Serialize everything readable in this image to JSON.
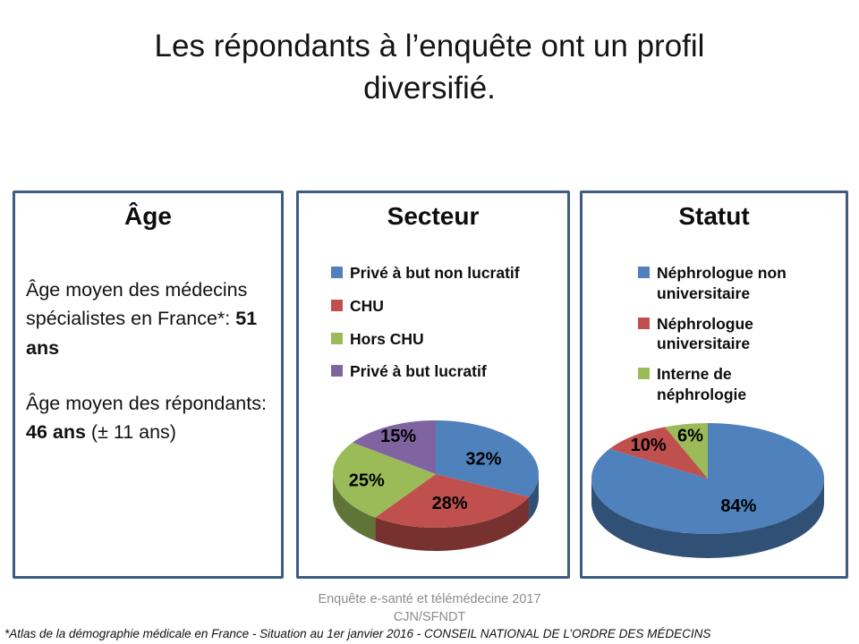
{
  "slide": {
    "title": "Les répondants à l’enquête ont un profil diversifié."
  },
  "age_card": {
    "title": "Âge",
    "p1": [
      {
        "t": "Âge moyen des médecins spécialistes en France*: ",
        "b": false
      },
      {
        "t": "51 ans",
        "b": true
      }
    ],
    "p2": [
      {
        "t": "Âge moyen des répondants: ",
        "b": false
      },
      {
        "t": "46 ans",
        "b": true
      },
      {
        "t": " (± 11 ans)",
        "b": false
      }
    ]
  },
  "chart_data": [
    {
      "type": "pie",
      "style": "3d",
      "title": "Secteur",
      "labels": [
        "Privé à but non lucratif",
        "CHU",
        "Hors CHU",
        "Privé à but lucratif"
      ],
      "values": [
        32,
        28,
        25,
        15
      ],
      "value_labels": [
        "32%",
        "28%",
        "25%",
        "15%"
      ],
      "colors": [
        "#4F81BD",
        "#C0504D",
        "#9BBB59",
        "#8064A2"
      ],
      "legend_position": "top-left",
      "start_angle_deg_clockwise_from_top": 0
    },
    {
      "type": "pie",
      "style": "3d",
      "title": "Statut",
      "labels": [
        "Néphrologue non universitaire",
        "Néphrologue universitaire",
        "Interne de néphrologie"
      ],
      "values": [
        84,
        10,
        6
      ],
      "value_labels": [
        "84%",
        "10%",
        "6%"
      ],
      "colors": [
        "#4F81BD",
        "#C0504D",
        "#9BBB59"
      ],
      "legend_position": "top-left",
      "start_angle_deg_clockwise_from_top": 0
    }
  ],
  "footer": {
    "line1": "Enquête e-santé et télémédecine 2017",
    "line2": "CJN/SFNDT",
    "note": "*Atlas de la démographie médicale en France - Situation au 1er janvier 2016  - CONSEIL NATIONAL DE L’ORDRE DES MÉDECINS"
  }
}
